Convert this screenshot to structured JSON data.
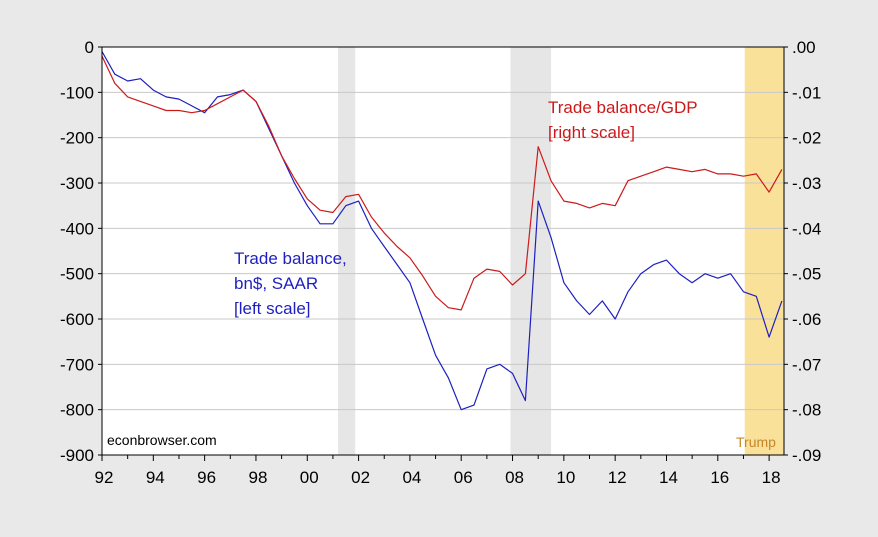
{
  "chart_data": {
    "type": "line",
    "x_ticks": [
      "92",
      "94",
      "96",
      "98",
      "00",
      "02",
      "04",
      "06",
      "08",
      "10",
      "12",
      "14",
      "16",
      "18"
    ],
    "left_axis": {
      "ticks": [
        0,
        -100,
        -200,
        -300,
        -400,
        -500,
        -600,
        -700,
        -800,
        -900
      ],
      "ylim": [
        -900,
        0
      ]
    },
    "right_axis": {
      "ticks": [
        ".00",
        "-.01",
        "-.02",
        "-.03",
        "-.04",
        "-.05",
        "-.06",
        "-.07",
        "-.08",
        "-.09"
      ],
      "ylim": [
        -0.09,
        0.0
      ]
    },
    "xlim": [
      1992.0,
      2018.58
    ],
    "grid": true,
    "shaded_periods": [
      {
        "start": 2001.2,
        "end": 2001.87,
        "color": "#e6e6e6"
      },
      {
        "start": 2007.92,
        "end": 2009.5,
        "color": "#e6e6e6"
      },
      {
        "start": 2017.05,
        "end": 2018.58,
        "color": "#f9e19a"
      }
    ],
    "annotations": {
      "trade_balance_gdp": [
        "Trade balance/GDP",
        "[right scale]"
      ],
      "trade_balance": [
        "Trade balance,",
        "bn$, SAAR",
        "[left scale]"
      ],
      "source": "econbrowser.com",
      "trump": "Trump"
    },
    "series": [
      {
        "axis": "left",
        "color": "#1f1fbf",
        "x": [
          1992.0,
          1992.5,
          1993.0,
          1993.5,
          1994.0,
          1994.5,
          1995.0,
          1995.5,
          1996.0,
          1996.5,
          1997.0,
          1997.5,
          1998.0,
          1998.5,
          1999.0,
          1999.5,
          2000.0,
          2000.5,
          2001.0,
          2001.5,
          2002.0,
          2002.5,
          2003.0,
          2003.5,
          2004.0,
          2004.5,
          2005.0,
          2005.5,
          2006.0,
          2006.5,
          2007.0,
          2007.5,
          2008.0,
          2008.5,
          2009.0,
          2009.5,
          2010.0,
          2010.5,
          2011.0,
          2011.5,
          2012.0,
          2012.5,
          2013.0,
          2013.5,
          2014.0,
          2014.5,
          2015.0,
          2015.5,
          2016.0,
          2016.5,
          2017.0,
          2017.5,
          2018.0,
          2018.5
        ],
        "y": [
          -10,
          -60,
          -75,
          -70,
          -95,
          -110,
          -115,
          -130,
          -145,
          -110,
          -105,
          -95,
          -120,
          -180,
          -240,
          -300,
          -350,
          -390,
          -390,
          -350,
          -340,
          -400,
          -440,
          -480,
          -520,
          -600,
          -680,
          -730,
          -800,
          -790,
          -710,
          -700,
          -720,
          -780,
          -340,
          -420,
          -520,
          -560,
          -590,
          -560,
          -600,
          -540,
          -500,
          -480,
          -470,
          -500,
          -520,
          -500,
          -510,
          -500,
          -540,
          -550,
          -640,
          -560
        ]
      },
      {
        "axis": "right",
        "color": "#cc1a1a",
        "x": [
          1992.0,
          1992.5,
          1993.0,
          1993.5,
          1994.0,
          1994.5,
          1995.0,
          1995.5,
          1996.0,
          1996.5,
          1997.0,
          1997.5,
          1998.0,
          1998.5,
          1999.0,
          1999.5,
          2000.0,
          2000.5,
          2001.0,
          2001.5,
          2002.0,
          2002.5,
          2003.0,
          2003.5,
          2004.0,
          2004.5,
          2005.0,
          2005.5,
          2006.0,
          2006.5,
          2007.0,
          2007.5,
          2008.0,
          2008.5,
          2009.0,
          2009.5,
          2010.0,
          2010.5,
          2011.0,
          2011.5,
          2012.0,
          2012.5,
          2013.0,
          2013.5,
          2014.0,
          2014.5,
          2015.0,
          2015.5,
          2016.0,
          2016.5,
          2017.0,
          2017.5,
          2018.0,
          2018.5
        ],
        "y": [
          -0.002,
          -0.008,
          -0.011,
          -0.012,
          -0.013,
          -0.014,
          -0.014,
          -0.0145,
          -0.014,
          -0.0125,
          -0.011,
          -0.0095,
          -0.012,
          -0.0175,
          -0.024,
          -0.029,
          -0.0335,
          -0.036,
          -0.0365,
          -0.033,
          -0.0325,
          -0.0375,
          -0.041,
          -0.044,
          -0.0465,
          -0.0505,
          -0.055,
          -0.0575,
          -0.058,
          -0.051,
          -0.049,
          -0.0495,
          -0.0525,
          -0.05,
          -0.022,
          -0.0295,
          -0.034,
          -0.0345,
          -0.0355,
          -0.0345,
          -0.035,
          -0.0295,
          -0.0285,
          -0.0275,
          -0.0265,
          -0.027,
          -0.0275,
          -0.027,
          -0.028,
          -0.028,
          -0.0285,
          -0.028,
          -0.032,
          -0.027
        ]
      }
    ]
  }
}
